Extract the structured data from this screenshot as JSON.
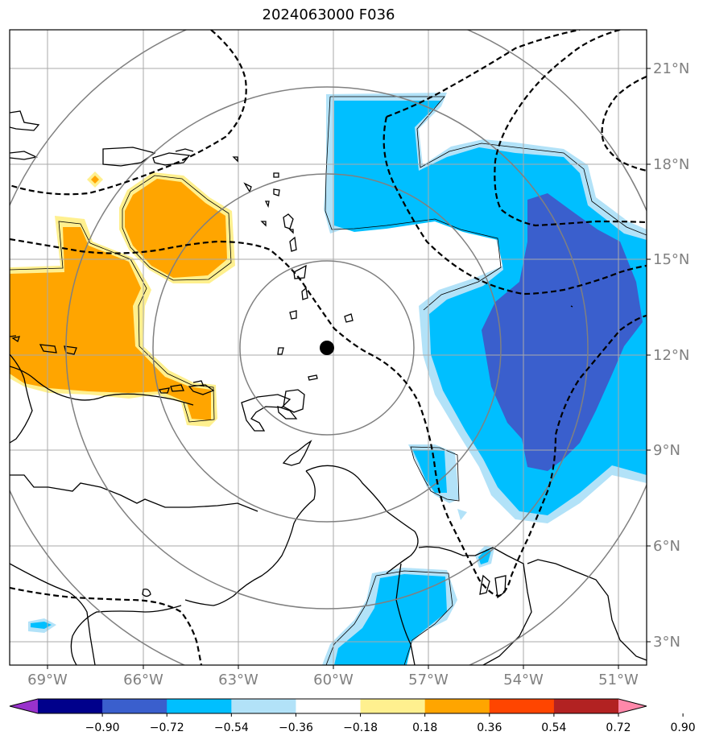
{
  "title": "2024063000 F036",
  "lon_labels": [
    "69°W",
    "66°W",
    "63°W",
    "60°W",
    "57°W",
    "54°W",
    "51°W"
  ],
  "lat_labels": [
    "21°N",
    "18°N",
    "15°N",
    "12°N",
    "9°N",
    "6°N",
    "3°N"
  ],
  "colorbar": {
    "ticks": [
      "−0.90",
      "−0.72",
      "−0.54",
      "−0.36",
      "−0.18",
      "0.18",
      "0.36",
      "0.54",
      "0.72",
      "0.90"
    ],
    "colors": [
      "#9932cc",
      "#00008b",
      "#3a5fcd",
      "#00bfff",
      "#b2e2f8",
      "#ffffff",
      "#fff08f",
      "#ffa500",
      "#ff4500",
      "#b22222",
      "#ff88aa"
    ]
  },
  "center_marker": "storm-center",
  "colors": {
    "orange": "#ffa500",
    "light_yellow": "#fff08f",
    "cyan": "#00bfff",
    "light_cyan": "#b2e2f8",
    "royal_blue": "#3a5fcd",
    "grid": "#aaaaaa",
    "range_rings": "#808080"
  }
}
